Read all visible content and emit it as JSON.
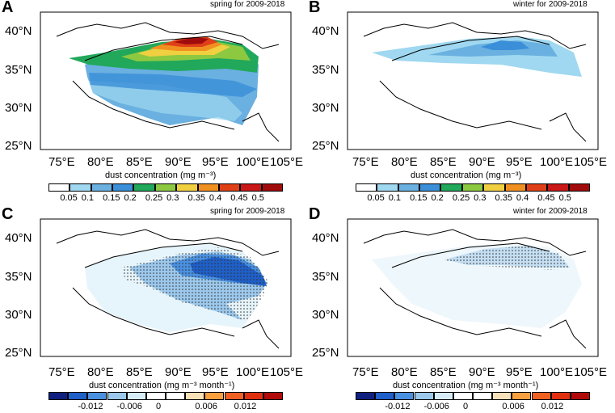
{
  "panels": [
    {
      "letter": "A",
      "title": "spring for 2009-2018",
      "lat_labels": [
        "40°N",
        "35°N",
        "30°N",
        "25°N"
      ],
      "lon_labels": [
        "75°E",
        "80°E",
        "85°E",
        "90°E",
        "95°E",
        "100°E",
        "105°E"
      ],
      "colorbar": {
        "title": "dust concentration (mg m⁻³)",
        "ticks": [
          "0.05",
          "0.1",
          "0.15",
          "0.2",
          "0.25",
          "0.3",
          "0.35",
          "0.4",
          "0.45",
          "0.5"
        ],
        "colors": [
          "#ffffff",
          "#9fd8f0",
          "#6ab0e0",
          "#3a8fd8",
          "#21a85a",
          "#8cc840",
          "#f0d040",
          "#f09020",
          "#e04018",
          "#c81818",
          "#a00c0c"
        ]
      }
    },
    {
      "letter": "B",
      "title": "winter for 2009-2018",
      "lat_labels": [
        "40°N",
        "35°N",
        "30°N",
        "25°N"
      ],
      "lon_labels": [
        "75°E",
        "80°E",
        "85°E",
        "90°E",
        "95°E",
        "100°E",
        "105°E"
      ],
      "colorbar": {
        "title": "dust concentration (mg m⁻³)",
        "ticks": [
          "0.05",
          "0.1",
          "0.15",
          "0.2",
          "0.25",
          "0.3",
          "0.35",
          "0.4",
          "0.45",
          "0.5"
        ],
        "colors": [
          "#ffffff",
          "#9fd8f0",
          "#6ab0e0",
          "#3a8fd8",
          "#21a85a",
          "#8cc840",
          "#f0d040",
          "#f09020",
          "#e04018",
          "#c81818",
          "#a00c0c"
        ]
      }
    },
    {
      "letter": "C",
      "title": "spring for 2009-2018",
      "lat_labels": [
        "40°N",
        "35°N",
        "30°N",
        "25°N"
      ],
      "lon_labels": [
        "75°E",
        "80°E",
        "85°E",
        "90°E",
        "95°E",
        "100°E",
        "105°E"
      ],
      "colorbar": {
        "title": "dust concentration (mg m⁻³ month⁻¹)",
        "ticks": [
          "-0.012",
          "-0.006",
          "0",
          "0.006",
          "0.012"
        ],
        "colors": [
          "#102080",
          "#1f5fc8",
          "#4a90e0",
          "#9cc8ec",
          "#d8ecf8",
          "#ffffff",
          "#ffffff",
          "#f8e0b8",
          "#f8a040",
          "#f06020",
          "#e03010",
          "#b00a0a"
        ]
      }
    },
    {
      "letter": "D",
      "title": "winter for 2009-2018",
      "lat_labels": [
        "40°N",
        "35°N",
        "30°N",
        "25°N"
      ],
      "lon_labels": [
        "75°E",
        "80°E",
        "85°E",
        "90°E",
        "95°E",
        "100°E",
        "105°E"
      ],
      "colorbar": {
        "title": "dust concentration (mg m⁻³ month⁻¹)",
        "ticks": [
          "-0.012",
          "-0.006",
          "0",
          "0.006",
          "0.012"
        ],
        "colors": [
          "#102080",
          "#1f5fc8",
          "#4a90e0",
          "#9cc8ec",
          "#d8ecf8",
          "#ffffff",
          "#ffffff",
          "#f8e0b8",
          "#f8a040",
          "#f06020",
          "#e03010",
          "#b00a0a"
        ]
      }
    }
  ],
  "chart_data": [
    {
      "type": "heatmap",
      "panel": "A",
      "title": "spring for 2009-2018",
      "variable": "dust concentration",
      "units": "mg m-3",
      "xlim": [
        70,
        105
      ],
      "ylim": [
        25,
        42
      ],
      "levels": [
        0.05,
        0.1,
        0.15,
        0.2,
        0.25,
        0.3,
        0.35,
        0.4,
        0.45,
        0.5
      ]
    },
    {
      "type": "heatmap",
      "panel": "B",
      "title": "winter for 2009-2018",
      "variable": "dust concentration",
      "units": "mg m-3",
      "xlim": [
        70,
        105
      ],
      "ylim": [
        25,
        42
      ],
      "levels": [
        0.05,
        0.1,
        0.15,
        0.2,
        0.25,
        0.3,
        0.35,
        0.4,
        0.45,
        0.5
      ]
    },
    {
      "type": "heatmap",
      "panel": "C",
      "title": "spring for 2009-2018",
      "variable": "dust concentration trend",
      "units": "mg m-3 month-1",
      "xlim": [
        70,
        105
      ],
      "ylim": [
        25,
        42
      ],
      "levels": [
        -0.012,
        -0.006,
        0,
        0.006,
        0.012
      ]
    },
    {
      "type": "heatmap",
      "panel": "D",
      "title": "winter for 2009-2018",
      "variable": "dust concentration trend",
      "units": "mg m-3 month-1",
      "xlim": [
        70,
        105
      ],
      "ylim": [
        25,
        42
      ],
      "levels": [
        -0.012,
        -0.006,
        0,
        0.006,
        0.012
      ]
    }
  ]
}
